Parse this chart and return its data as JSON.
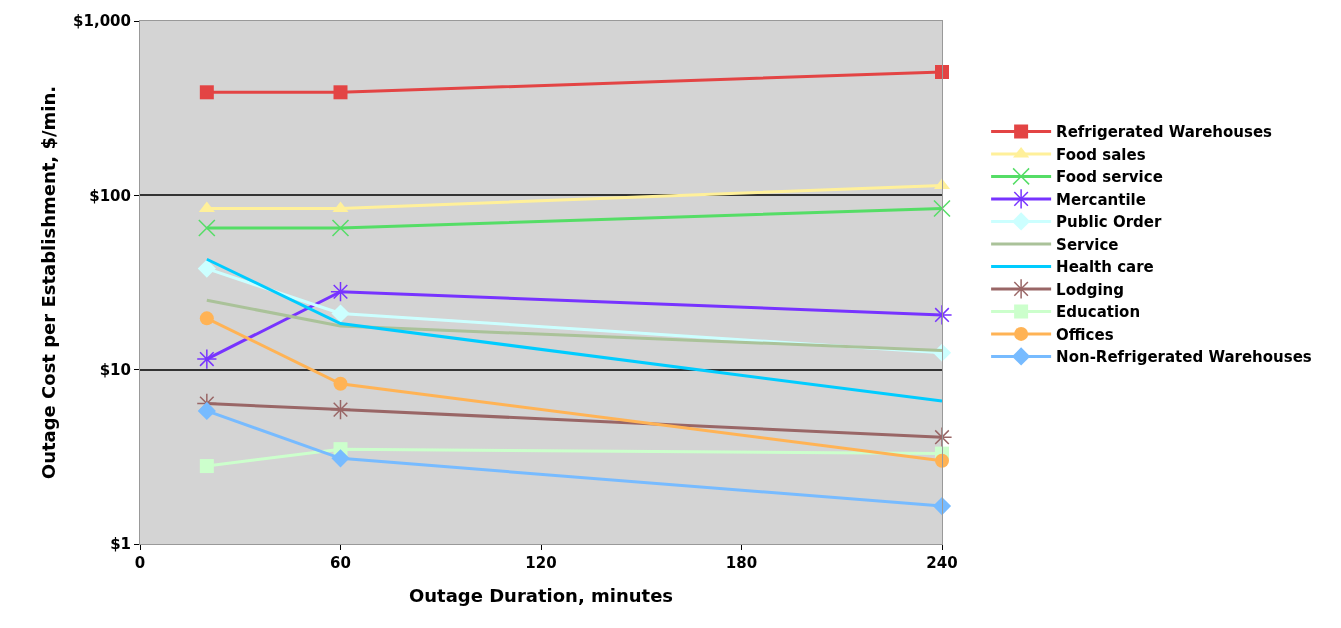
{
  "chart_data": {
    "type": "line",
    "xlabel": "Outage Duration, minutes",
    "ylabel": "Outage Cost per Establishment, $/min.",
    "x": [
      20,
      60,
      240
    ],
    "xlim": [
      0,
      240
    ],
    "xticks": [
      0,
      60,
      120,
      180,
      240
    ],
    "log": "y",
    "ylim": [
      1,
      1000
    ],
    "yticks": [
      {
        "value": 1,
        "label": "$1"
      },
      {
        "value": 10,
        "label": "$10"
      },
      {
        "value": 100,
        "label": "$100"
      },
      {
        "value": 1000,
        "label": "$1,000"
      }
    ],
    "grid": "y",
    "legend": "right",
    "series": [
      {
        "name": "Refrigerated Warehouses",
        "color": "#e34444",
        "marker": "square",
        "values": [
          390,
          390,
          510
        ]
      },
      {
        "name": "Food sales",
        "color": "#fff09a",
        "marker": "triangle",
        "values": [
          84,
          84,
          114
        ]
      },
      {
        "name": "Food service",
        "color": "#55dd66",
        "marker": "x",
        "values": [
          65,
          65,
          84
        ]
      },
      {
        "name": "Mercantile",
        "color": "#7733ff",
        "marker": "cross",
        "values": [
          11.5,
          28,
          20.6
        ]
      },
      {
        "name": "Public Order",
        "color": "#ccffff",
        "marker": "diamond",
        "values": [
          38,
          21,
          12.5
        ]
      },
      {
        "name": "Service",
        "color": "#aac299",
        "marker": "none",
        "values": [
          25,
          17.8,
          12.9
        ]
      },
      {
        "name": "Health care",
        "color": "#00ccff",
        "marker": "none",
        "values": [
          43,
          18.4,
          6.6
        ]
      },
      {
        "name": "Lodging",
        "color": "#996666",
        "marker": "cross",
        "values": [
          6.4,
          5.9,
          4.1
        ]
      },
      {
        "name": "Education",
        "color": "#ccffcc",
        "marker": "square",
        "values": [
          2.8,
          3.5,
          3.3
        ]
      },
      {
        "name": "Offices",
        "color": "#ffb355",
        "marker": "circle",
        "values": [
          19.7,
          8.3,
          3.0
        ]
      },
      {
        "name": "Non-Refrigerated Warehouses",
        "color": "#77bbff",
        "marker": "diamond",
        "values": [
          5.8,
          3.1,
          1.65
        ]
      }
    ]
  }
}
